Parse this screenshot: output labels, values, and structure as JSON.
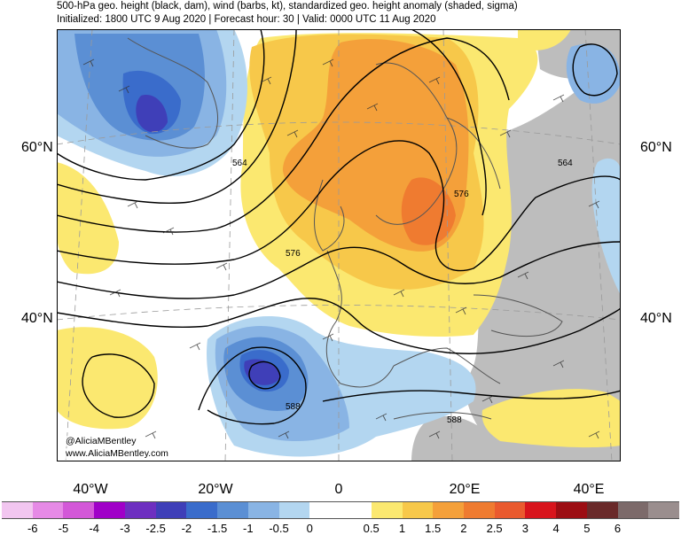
{
  "title": {
    "line1": "500-hPa geo. height (black, dam), wind (barbs, kt), standardized geo. height anomaly (shaded, sigma)",
    "line2": "Initialized: 1800 UTC 9 Aug 2020 | Forecast hour: 30 | Valid: 0000 UTC 11 Aug 2020"
  },
  "lat_labels": {
    "lat60_left": "60°N",
    "lat60_right": "60°N",
    "lat40_left": "40°N",
    "lat40_right": "40°N"
  },
  "lon_labels": {
    "w40": "40°W",
    "w20": "20°W",
    "zero": "0",
    "e20": "20°E",
    "e40": "40°E"
  },
  "contour_labels": {
    "c564_west": "564",
    "c564_east": "564",
    "c576_norway": "576",
    "c576_west": "576",
    "c588_iberia": "588",
    "c588_east": "588"
  },
  "credits": {
    "handle": "@AliciaMBentley",
    "site": "www.AliciaMBentley.com"
  },
  "colorbar": {
    "colors": [
      "#f2c6f0",
      "#e68ae6",
      "#d358d8",
      "#a000c8",
      "#6e2fc0",
      "#3f3fb8",
      "#3a6ccb",
      "#5b8fd4",
      "#89b4e4",
      "#b3d6f0",
      "#ffffff",
      "#ffffff",
      "#fbe870",
      "#f7c84a",
      "#f4a03a",
      "#ef7b30",
      "#ea5a2e",
      "#d8141c",
      "#9c0d13",
      "#6a2a2a",
      "#7c6a6a",
      "#9a8e8e"
    ],
    "labels": [
      "-6",
      "-5",
      "-4",
      "-3",
      "-2.5",
      "-2",
      "-1.5",
      "-1",
      "-0.5",
      "0",
      "0.5",
      "1",
      "1.5",
      "2",
      "2.5",
      "3",
      "4",
      "5",
      "6"
    ]
  },
  "anomaly_colors": {
    "neg1": "#b3d6f0",
    "neg1_5": "#89b4e4",
    "neg2": "#5b8fd4",
    "neg2_5": "#3a6ccb",
    "neg3": "#3f3fb8",
    "pos1": "#fbe870",
    "pos1_5": "#f7c84a",
    "pos2": "#f4a03a",
    "pos2_5": "#ef7b30",
    "gray": "#bdbdbd"
  }
}
